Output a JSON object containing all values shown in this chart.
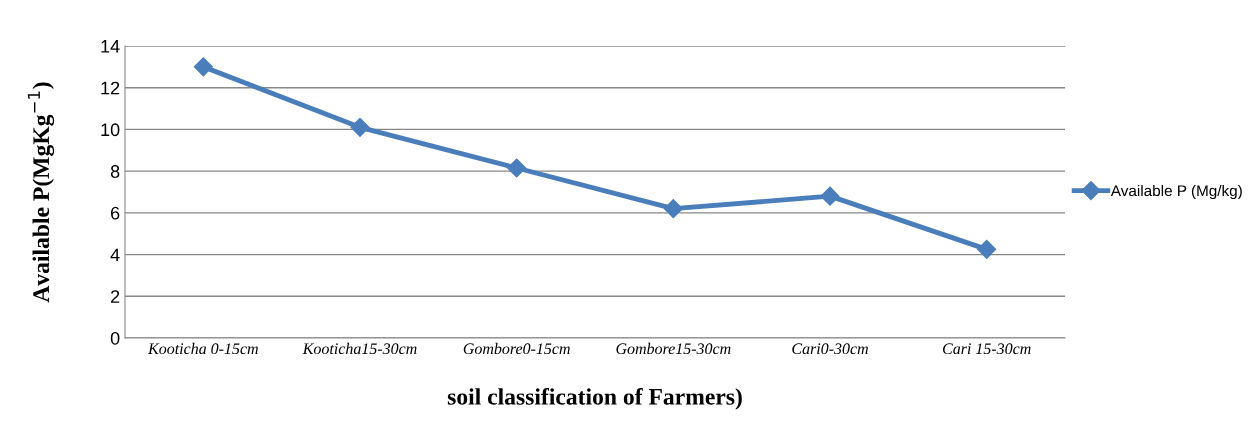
{
  "chart_data": {
    "type": "line",
    "xlabel": "soil classification of Farmers)",
    "ylabel": "Available P(MgKg$^{−1}$)",
    "categories": [
      "Kooticha 0-15cm",
      "Kooticha15-30cm",
      "Gombore0-15cm",
      "Gombore15-30cm",
      "Cari0-30cm",
      "Cari 15-30cm"
    ],
    "series": [
      {
        "name": "Available P (Mg/kg)",
        "color": "#4a7ebb",
        "values": [
          13.0,
          10.1,
          8.15,
          6.2,
          6.8,
          4.25
        ]
      }
    ],
    "ylim": [
      0,
      14
    ],
    "yticks": [
      0,
      2,
      4,
      6,
      8,
      10,
      12,
      14
    ],
    "grid": "y",
    "legend": "right",
    "marker": "diamond",
    "line_style": "solid"
  }
}
